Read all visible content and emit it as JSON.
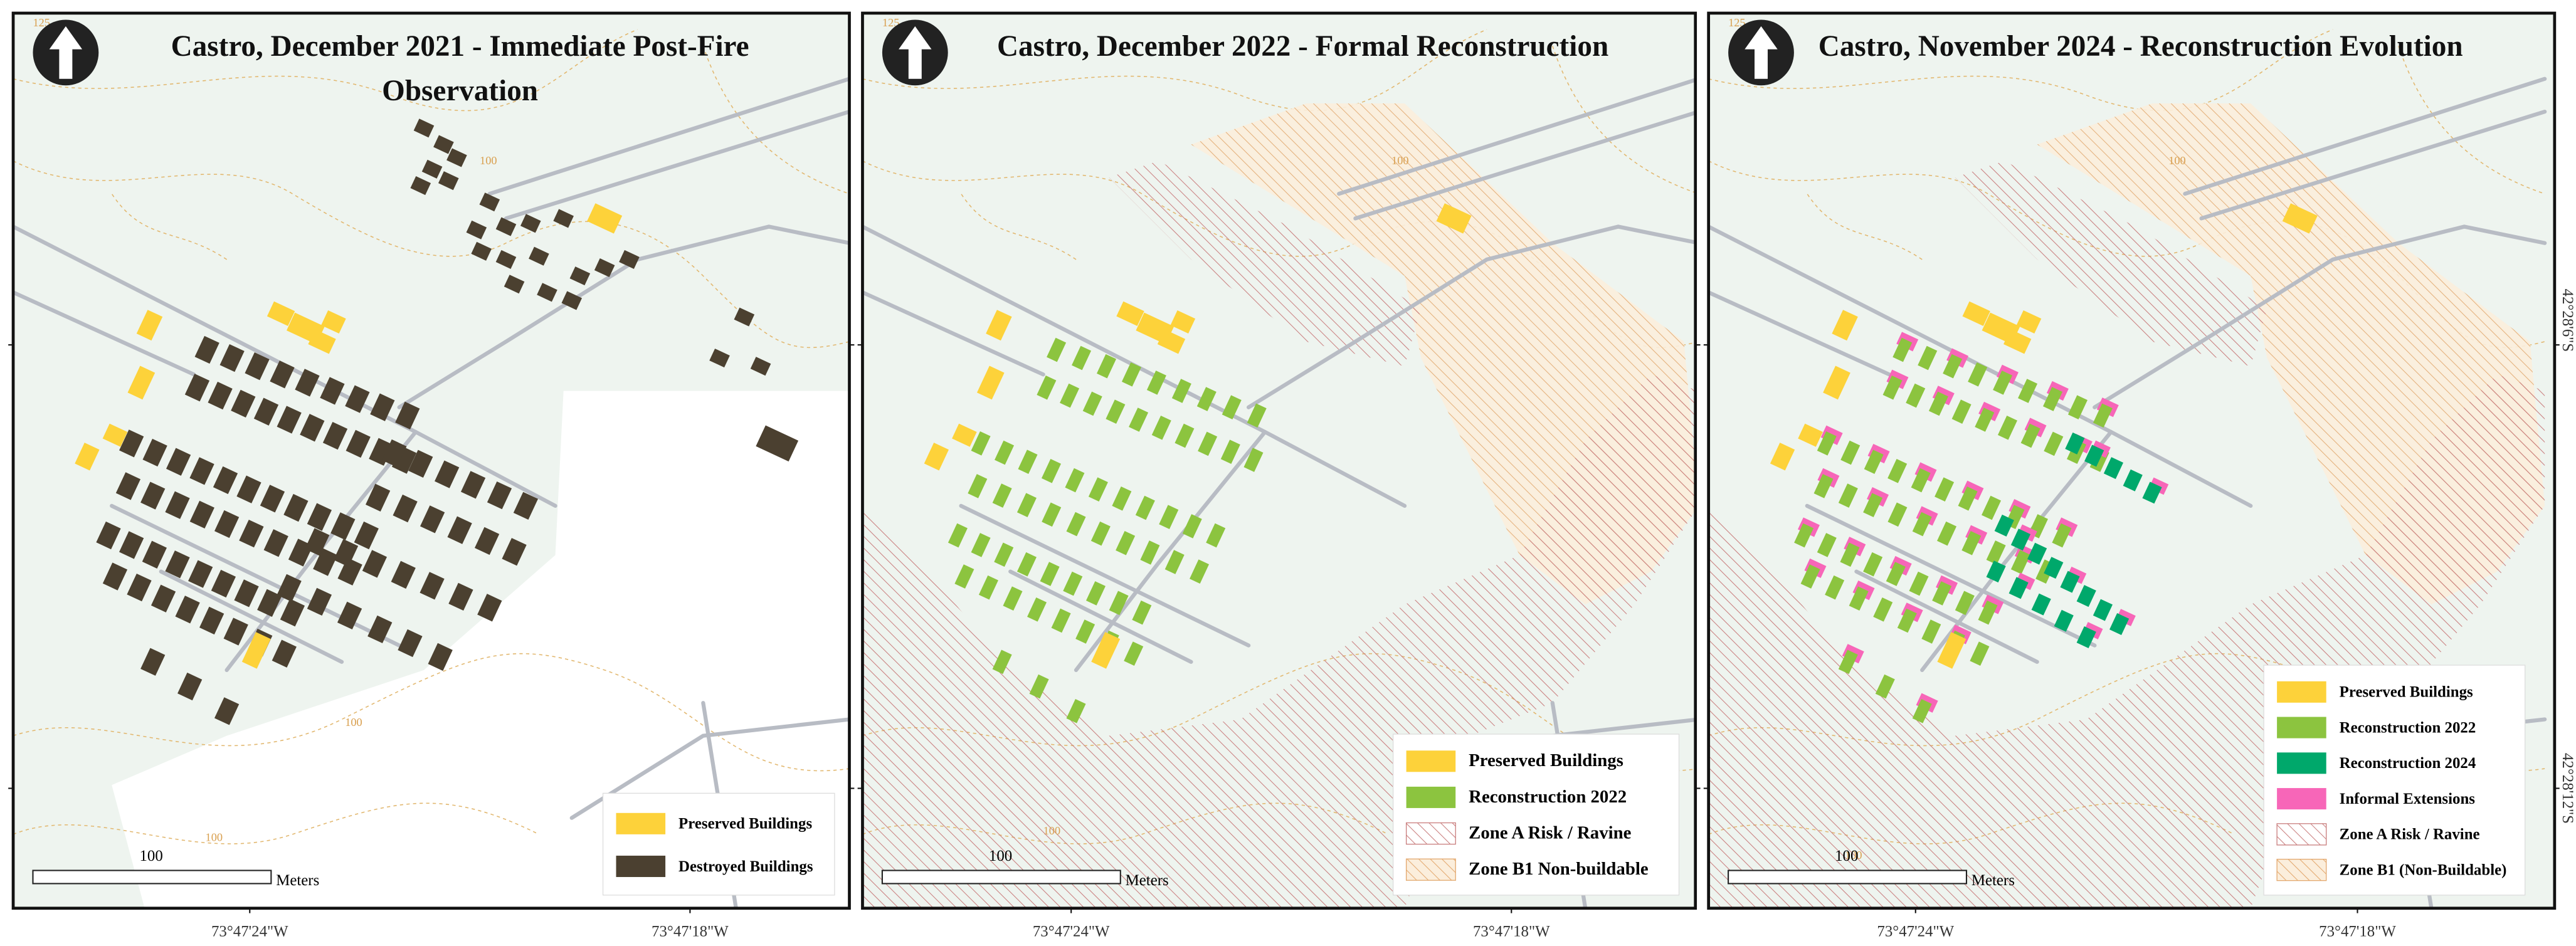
{
  "panels": [
    {
      "title": "Castro, December 2021 - Immediate Post-Fire Observation",
      "legend": [
        {
          "label": "Preserved Buildings",
          "color": "#fdd23a"
        },
        {
          "label": "Destroyed Buildings",
          "color": "#4b4030"
        }
      ],
      "scale_label": "100",
      "scale_unit": "Meters",
      "contour_labels": [
        "125",
        "100",
        "100",
        "100"
      ],
      "x_labels": [
        "73°47'24\"W",
        "73°47'18\"W"
      ]
    },
    {
      "title": "Castro, December 2022 - Formal Reconstruction",
      "legend": [
        {
          "label": "Preserved Buildings",
          "color": "#fdd23a"
        },
        {
          "label": "Reconstruction 2022",
          "color": "#8cc43f"
        },
        {
          "label": "Zone A Risk / Ravine",
          "color": "#c97e7e",
          "pattern": "hatch"
        },
        {
          "label": "Zone B1 Non-buildable",
          "color": "#e3a86e",
          "pattern": "hatch"
        }
      ],
      "scale_label": "100",
      "scale_unit": "Meters",
      "contour_labels": [
        "125",
        "100",
        "100"
      ],
      "x_labels": [
        "73°47'24\"W",
        "73°47'18\"W"
      ]
    },
    {
      "title": "Castro, November 2024 - Reconstruction Evolution",
      "legend": [
        {
          "label": "Preserved Buildings",
          "color": "#fdd23a"
        },
        {
          "label": "Reconstruction 2022",
          "color": "#8cc43f"
        },
        {
          "label": "Reconstruction 2024",
          "color": "#00a86b"
        },
        {
          "label": "Informal Extensions",
          "color": "#f766b8"
        },
        {
          "label": "Zone A Risk / Ravine",
          "color": "#c97e7e",
          "pattern": "hatch"
        },
        {
          "label": "Zone B1 (Non-Buildable)",
          "color": "#e3a86e",
          "pattern": "hatch"
        }
      ],
      "scale_label": "100",
      "scale_unit": "Meters",
      "contour_labels": [
        "125",
        "100",
        "100"
      ],
      "x_labels": [
        "73°47'24\"W",
        "73°47'18\"W"
      ]
    }
  ],
  "y_labels": [
    "42°28'6\"S",
    "42°28'12\"S"
  ]
}
